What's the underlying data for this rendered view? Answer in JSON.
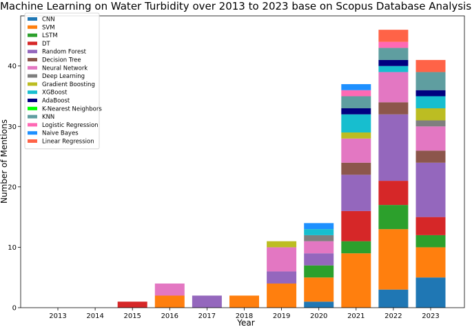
{
  "chart_data": {
    "type": "bar",
    "stacked": true,
    "title": "Machine Learning on Water Turbidity over 2013 to 2023 base on Scopus Database Analysis",
    "xlabel": "Year",
    "ylabel": "Number of Mentions",
    "ylim": [
      0,
      48.3
    ],
    "yticks": [
      0,
      10,
      20,
      30,
      40
    ],
    "legend_position": "top-left",
    "categories": [
      "2013",
      "2014",
      "2015",
      "2016",
      "2017",
      "2018",
      "2019",
      "2020",
      "2021",
      "2022",
      "2023"
    ],
    "series": [
      {
        "name": "CNN",
        "color": "#1f77b4",
        "values": [
          0,
          0,
          0,
          0,
          0,
          0,
          0,
          1,
          0,
          3,
          5
        ]
      },
      {
        "name": "SVM",
        "color": "#ff7f0e",
        "values": [
          0,
          0,
          0,
          2,
          0,
          2,
          4,
          4,
          9,
          10,
          5
        ]
      },
      {
        "name": "LSTM",
        "color": "#2ca02c",
        "values": [
          0,
          0,
          0,
          0,
          0,
          0,
          0,
          2,
          2,
          4,
          2
        ]
      },
      {
        "name": "DT",
        "color": "#d62728",
        "values": [
          0,
          0,
          1,
          0,
          0,
          0,
          0,
          0,
          5,
          4,
          3
        ]
      },
      {
        "name": "Random Forest",
        "color": "#9467bd",
        "values": [
          0,
          0,
          0,
          0,
          2,
          0,
          2,
          2,
          6,
          11,
          9
        ]
      },
      {
        "name": "Decision Tree",
        "color": "#8c564b",
        "values": [
          0,
          0,
          0,
          0,
          0,
          0,
          0,
          0,
          2,
          2,
          2
        ]
      },
      {
        "name": "Neural Network",
        "color": "#e377c2",
        "values": [
          0,
          0,
          0,
          2,
          0,
          0,
          4,
          2,
          4,
          5,
          4
        ]
      },
      {
        "name": "Deep Learning",
        "color": "#7f7f7f",
        "values": [
          0,
          0,
          0,
          0,
          0,
          0,
          0,
          1,
          0,
          0,
          1
        ]
      },
      {
        "name": "Gradient Boosting",
        "color": "#bcbd22",
        "values": [
          0,
          0,
          0,
          0,
          0,
          0,
          1,
          0,
          1,
          0,
          2
        ]
      },
      {
        "name": "XGBoost",
        "color": "#17becf",
        "values": [
          0,
          0,
          0,
          0,
          0,
          0,
          0,
          1,
          3,
          1,
          2
        ]
      },
      {
        "name": "AdaBoost",
        "color": "#000080",
        "values": [
          0,
          0,
          0,
          0,
          0,
          0,
          0,
          0,
          1,
          1,
          1
        ]
      },
      {
        "name": "K-Nearest Neighbors",
        "color": "#00ff00",
        "values": [
          0,
          0,
          0,
          0,
          0,
          0,
          0,
          0,
          0,
          0,
          0
        ]
      },
      {
        "name": "KNN",
        "color": "#5f9ea0",
        "values": [
          0,
          0,
          0,
          0,
          0,
          0,
          0,
          0,
          2,
          2,
          3
        ]
      },
      {
        "name": "Logistic Regression",
        "color": "#ff69b4",
        "values": [
          0,
          0,
          0,
          0,
          0,
          0,
          0,
          0,
          1,
          1,
          0
        ]
      },
      {
        "name": "Naive Bayes",
        "color": "#1e90ff",
        "values": [
          0,
          0,
          0,
          0,
          0,
          0,
          0,
          1,
          1,
          0,
          0
        ]
      },
      {
        "name": "Linear Regression",
        "color": "#ff6347",
        "values": [
          0,
          0,
          0,
          0,
          0,
          0,
          0,
          0,
          0,
          2,
          2
        ]
      }
    ]
  }
}
